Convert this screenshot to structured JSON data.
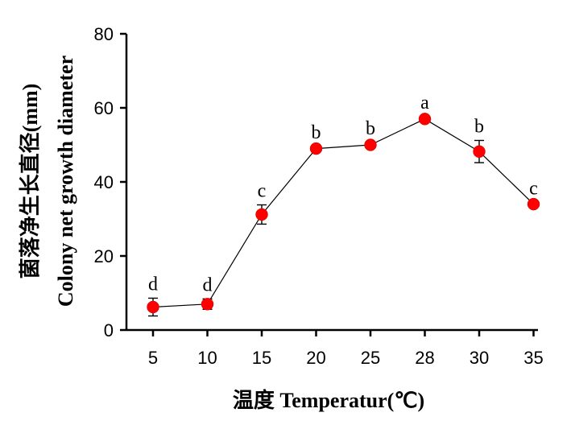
{
  "chart_data": {
    "type": "line",
    "categories": [
      "5",
      "10",
      "15",
      "20",
      "25",
      "28",
      "30",
      "35"
    ],
    "series": [
      {
        "values": [
          6.2,
          7.0,
          31.2,
          49.0,
          50.0,
          57.0,
          48.2,
          34.0
        ],
        "errors": [
          2.4,
          1.4,
          2.6,
          0.6,
          0.6,
          0.6,
          3.0,
          0.5
        ],
        "significance": [
          "d",
          "d",
          "c",
          "b",
          "b",
          "a",
          "b",
          "c"
        ],
        "color": "#ff0000"
      }
    ],
    "ylim": [
      0,
      80
    ],
    "yticks": [
      "0",
      "20",
      "40",
      "60",
      "80"
    ],
    "xlabel": "温度 Temperatur(℃)",
    "ylabel_line1": "菌落净生长直径(mm)",
    "ylabel_line2": "Colony net growth diameter",
    "grid": false
  }
}
